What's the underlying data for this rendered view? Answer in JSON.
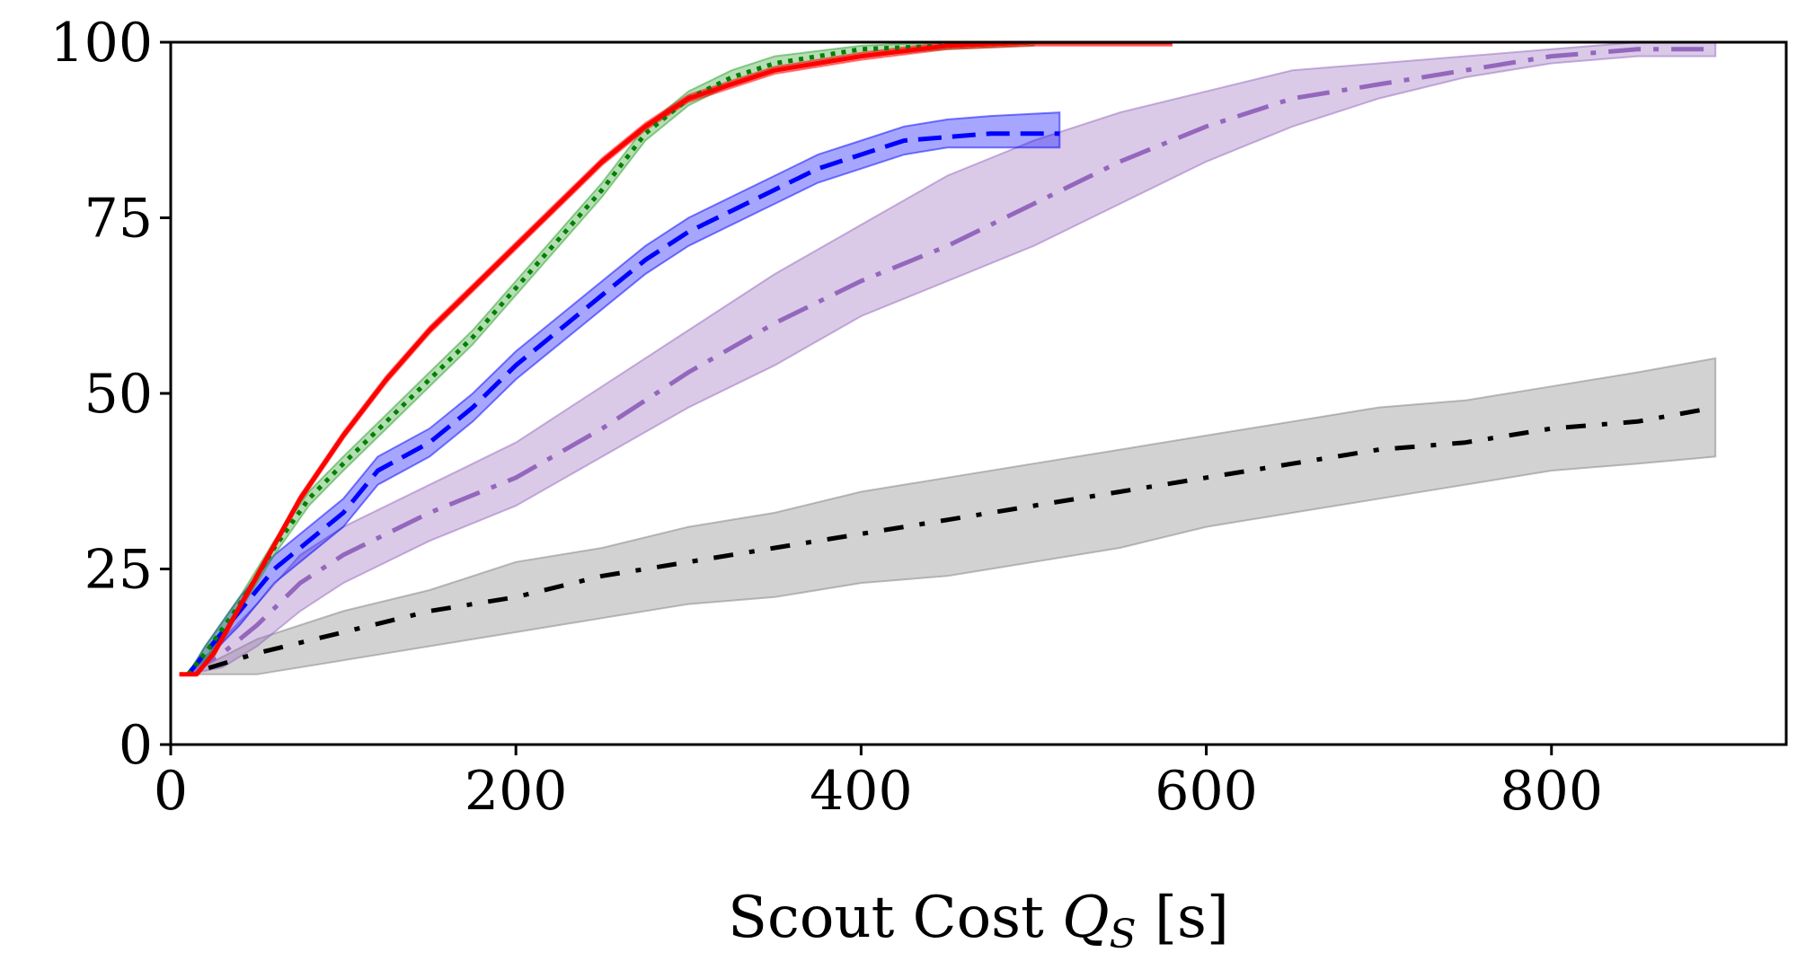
{
  "chart_data": {
    "type": "line",
    "title": "",
    "xlabel": "Scout Cost Q_S [s]",
    "xlabel_parts": {
      "prefix": "Scout Cost ",
      "var": "Q",
      "sub": "S",
      "suffix": " [s]"
    },
    "ylabel": "",
    "xlim": [
      0,
      936
    ],
    "ylim": [
      0,
      100
    ],
    "xticks": [
      0,
      200,
      400,
      600,
      800
    ],
    "yticks": [
      0,
      25,
      50,
      75,
      100
    ],
    "grid": false,
    "series": [
      {
        "name": "gray dash-dot-dot",
        "color": "#000000",
        "band_color": "#7f7f7f",
        "dash": "6 18 22 18",
        "x": [
          10,
          50,
          100,
          150,
          200,
          250,
          300,
          350,
          400,
          450,
          500,
          550,
          600,
          650,
          700,
          750,
          800,
          850,
          895
        ],
        "mean": [
          10,
          13,
          16,
          19,
          21,
          24,
          26,
          28,
          30,
          32,
          34,
          36,
          38,
          40,
          42,
          43,
          45,
          46,
          48
        ],
        "lower": [
          10,
          10,
          12,
          14,
          16,
          18,
          20,
          21,
          23,
          24,
          26,
          28,
          31,
          33,
          35,
          37,
          39,
          40,
          41
        ],
        "upper": [
          10,
          15,
          19,
          22,
          26,
          28,
          31,
          33,
          36,
          38,
          40,
          42,
          44,
          46,
          48,
          49,
          51,
          53,
          55
        ]
      },
      {
        "name": "purple dash-dot",
        "color": "#9467bd",
        "band_color": "#9467bd",
        "dash": "36 14 6 14",
        "x": [
          10,
          30,
          50,
          75,
          100,
          150,
          200,
          250,
          300,
          350,
          400,
          450,
          500,
          550,
          600,
          650,
          700,
          750,
          800,
          850,
          895
        ],
        "mean": [
          10,
          13,
          17,
          23,
          27,
          33,
          38,
          45,
          53,
          60,
          66,
          71,
          77,
          83,
          88,
          92,
          94,
          96,
          98,
          99,
          99
        ],
        "lower": [
          10,
          11,
          14,
          19,
          23,
          29,
          34,
          41,
          48,
          54,
          61,
          66,
          71,
          77,
          83,
          88,
          92,
          95,
          97,
          98,
          98
        ],
        "upper": [
          10,
          15,
          20,
          27,
          31,
          37,
          43,
          51,
          59,
          67,
          74,
          81,
          86,
          90,
          93,
          96,
          97,
          98,
          99,
          100,
          100
        ]
      },
      {
        "name": "blue dashed",
        "color": "#0000ff",
        "band_color": "#0000ff",
        "dash": "26 12",
        "x": [
          10,
          20,
          40,
          60,
          80,
          100,
          120,
          150,
          175,
          200,
          225,
          250,
          275,
          300,
          325,
          350,
          375,
          400,
          425,
          450,
          475,
          515
        ],
        "mean": [
          10,
          13,
          19,
          25,
          29,
          33,
          39,
          43,
          48,
          54,
          59,
          64,
          69,
          73,
          76,
          79,
          82,
          84,
          86,
          86.5,
          87,
          87
        ],
        "lower": [
          10,
          12,
          17,
          23,
          27,
          31,
          37,
          41,
          46,
          52,
          57,
          62,
          67,
          71,
          74,
          77,
          80,
          82,
          84,
          85,
          85,
          85
        ],
        "upper": [
          10,
          14,
          21,
          27,
          31,
          35,
          41,
          45,
          50,
          56,
          61,
          66,
          71,
          75,
          78,
          81,
          84,
          86,
          88,
          89,
          89.5,
          90
        ]
      },
      {
        "name": "green dotted",
        "color": "#008000",
        "band_color": "#2ca02c",
        "dash": "5 7",
        "x": [
          10,
          20,
          40,
          60,
          80,
          100,
          125,
          150,
          175,
          200,
          225,
          250,
          275,
          300,
          325,
          350,
          400,
          450,
          500
        ],
        "mean": [
          10,
          13,
          20,
          28,
          35,
          40,
          46,
          52,
          58,
          65,
          72,
          79,
          87,
          92,
          95,
          97,
          99,
          99.5,
          100
        ],
        "lower": [
          10,
          12,
          19,
          27,
          34,
          39,
          45,
          51,
          57,
          64,
          71,
          78,
          86,
          91,
          94,
          96,
          98,
          99,
          99.5
        ],
        "upper": [
          10,
          14,
          21,
          29,
          36,
          41,
          47,
          53,
          59,
          66,
          73,
          80,
          88,
          93,
          96,
          98,
          99.5,
          100,
          100
        ]
      },
      {
        "name": "red solid",
        "color": "#ff0000",
        "band_color": "#ff0000",
        "dash": "",
        "x": [
          5,
          15,
          25,
          50,
          75,
          100,
          125,
          150,
          175,
          200,
          225,
          250,
          275,
          300,
          325,
          350,
          400,
          450,
          500,
          580
        ],
        "mean": [
          10,
          10,
          13,
          24,
          35,
          44,
          52,
          59,
          65,
          71,
          77,
          83,
          88,
          92,
          94,
          96,
          98,
          99.5,
          100,
          100
        ],
        "lower": [
          10,
          10,
          12.5,
          23.5,
          34.5,
          43.5,
          51.5,
          58.5,
          64.5,
          70.5,
          76.5,
          82.5,
          87.5,
          91.5,
          93.5,
          95.5,
          97.5,
          99,
          99.5,
          99.5
        ],
        "upper": [
          10,
          10,
          13.5,
          24.5,
          35.5,
          44.5,
          52.5,
          59.5,
          65.5,
          71.5,
          77.5,
          83.5,
          88.5,
          92.5,
          94.5,
          96.5,
          98.5,
          100,
          100,
          100
        ]
      }
    ]
  }
}
